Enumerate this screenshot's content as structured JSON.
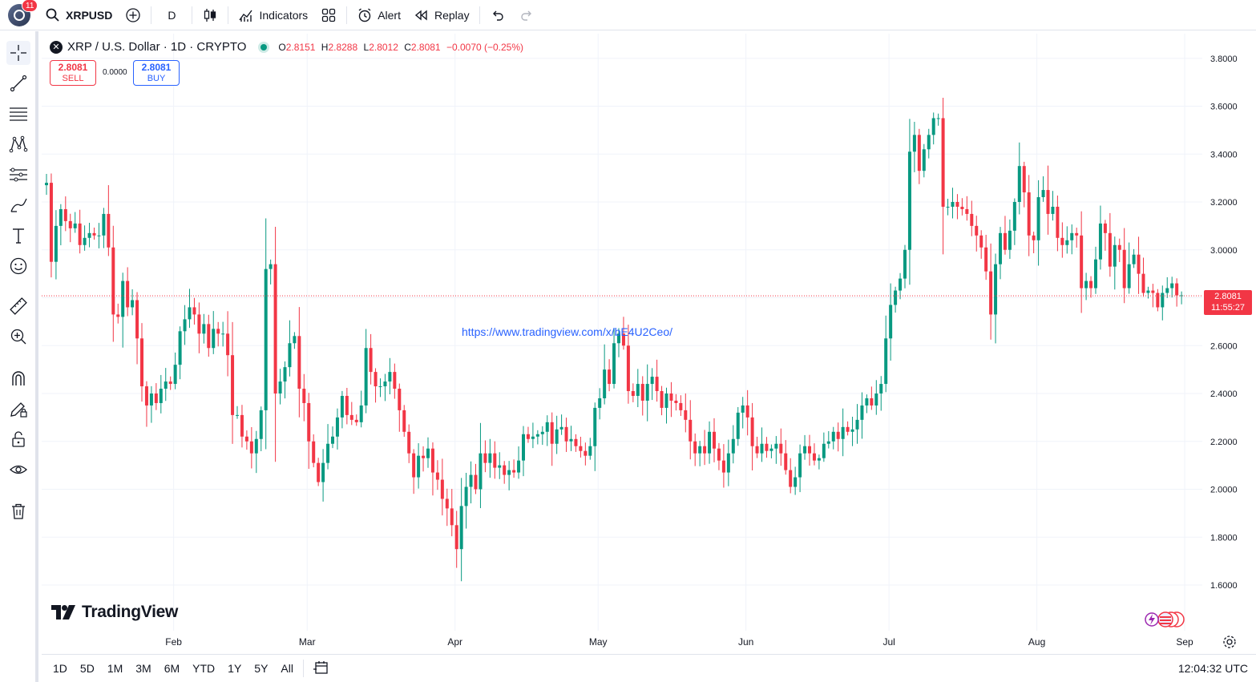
{
  "topbar": {
    "notification_count": "11",
    "symbol": "XRPUSD",
    "interval": "D",
    "indicators_label": "Indicators",
    "alert_label": "Alert",
    "replay_label": "Replay"
  },
  "legend": {
    "logo_letter": "✕",
    "title": "XRP / U.S. Dollar · 1D · CRYPTO",
    "open_key": "O",
    "open": "2.8151",
    "high_key": "H",
    "high": "2.8288",
    "low_key": "L",
    "low": "2.8012",
    "close_key": "C",
    "close": "2.8081",
    "change": "−0.0070 (−0.25%)"
  },
  "trade": {
    "sell_price": "2.8081",
    "sell_label": "SELL",
    "spread": "0.0000",
    "buy_price": "2.8081",
    "buy_label": "BUY"
  },
  "watermark_url": "https://www.tradingview.com/x/bE4U2Ceo/",
  "brand": "TradingView",
  "price_tag": {
    "price": "2.8081",
    "countdown": "11:55:27"
  },
  "colors": {
    "up": "#089981",
    "down": "#f23645",
    "grid": "#f0f3fa",
    "accent": "#2962ff"
  },
  "chart_data": {
    "type": "candlestick",
    "title": "XRP / U.S. Dollar · 1D · CRYPTO",
    "ylim": [
      1.5,
      3.85
    ],
    "y_ticks": [
      "3.8000",
      "3.6000",
      "3.4000",
      "3.2000",
      "3.0000",
      "2.8000",
      "2.6000",
      "2.4000",
      "2.2000",
      "2.0000",
      "1.8000",
      "1.6000"
    ],
    "x_ticks": [
      "Feb",
      "Mar",
      "Apr",
      "May",
      "Jun",
      "Jul",
      "Aug",
      "Sep"
    ],
    "x_tick_day_index": [
      27,
      55,
      86,
      116,
      147,
      177,
      208,
      239
    ],
    "last_price": 2.8081,
    "closes": [
      3.28,
      2.95,
      3.1,
      3.17,
      3.12,
      3.09,
      3.11,
      3.02,
      3.05,
      3.07,
      3.06,
      3.06,
      3.15,
      3.01,
      2.73,
      2.72,
      2.87,
      2.76,
      2.79,
      2.63,
      2.43,
      2.35,
      2.4,
      2.36,
      2.42,
      2.45,
      2.44,
      2.52,
      2.66,
      2.71,
      2.76,
      2.73,
      2.65,
      2.69,
      2.59,
      2.67,
      2.65,
      2.65,
      2.56,
      2.31,
      2.31,
      2.22,
      2.2,
      2.15,
      2.21,
      2.33,
      2.92,
      2.94,
      2.4,
      2.45,
      2.51,
      2.61,
      2.64,
      2.42,
      2.36,
      2.2,
      2.11,
      2.03,
      2.11,
      2.19,
      2.22,
      2.3,
      2.39,
      2.31,
      2.29,
      2.28,
      2.35,
      2.59,
      2.49,
      2.43,
      2.43,
      2.45,
      2.49,
      2.42,
      2.33,
      2.24,
      2.15,
      2.05,
      2.14,
      2.13,
      2.17,
      2.07,
      2.04,
      1.96,
      1.92,
      1.85,
      1.75,
      1.93,
      2.01,
      2.06,
      2.0,
      2.15,
      2.11,
      2.15,
      2.09,
      2.1,
      2.06,
      2.08,
      2.07,
      2.12,
      2.23,
      2.21,
      2.22,
      2.23,
      2.24,
      2.28,
      2.19,
      2.25,
      2.26,
      2.2,
      2.21,
      2.18,
      2.16,
      2.14,
      2.18,
      2.34,
      2.38,
      2.5,
      2.44,
      2.61,
      2.65,
      2.6,
      2.41,
      2.39,
      2.44,
      2.37,
      2.44,
      2.47,
      2.41,
      2.34,
      2.4,
      2.37,
      2.36,
      2.33,
      2.29,
      2.2,
      2.15,
      2.18,
      2.15,
      2.24,
      2.17,
      2.12,
      2.07,
      2.15,
      2.21,
      2.32,
      2.35,
      2.3,
      2.18,
      2.15,
      2.19,
      2.16,
      2.17,
      2.19,
      2.15,
      2.08,
      2.01,
      2.05,
      2.15,
      2.18,
      2.15,
      2.12,
      2.13,
      2.19,
      2.2,
      2.24,
      2.21,
      2.26,
      2.24,
      2.25,
      2.29,
      2.35,
      2.38,
      2.35,
      2.4,
      2.44,
      2.63,
      2.77,
      2.83,
      2.88,
      3.0,
      3.41,
      3.48,
      3.33,
      3.42,
      3.48,
      3.55,
      3.55,
      3.18,
      3.18,
      3.2,
      3.18,
      3.17,
      3.15,
      3.1,
      3.06,
      3.01,
      2.91,
      2.73,
      2.94,
      3.07,
      3.0,
      3.08,
      3.2,
      3.35,
      3.24,
      3.06,
      3.04,
      3.22,
      3.25,
      3.15,
      3.18,
      3.05,
      3.02,
      3.04,
      3.07,
      3.06,
      2.84,
      2.87,
      2.84,
      2.96,
      3.11,
      3.07,
      2.93,
      3.02,
      3.0,
      2.84,
      2.94,
      2.98,
      2.9,
      2.82,
      2.83,
      2.82,
      2.76,
      2.82,
      2.84,
      2.86,
      2.81,
      2.81
    ]
  },
  "bottombar": {
    "ranges": [
      "1D",
      "5D",
      "1M",
      "3M",
      "6M",
      "YTD",
      "1Y",
      "5Y",
      "All"
    ],
    "clock": "12:04:32 UTC"
  }
}
